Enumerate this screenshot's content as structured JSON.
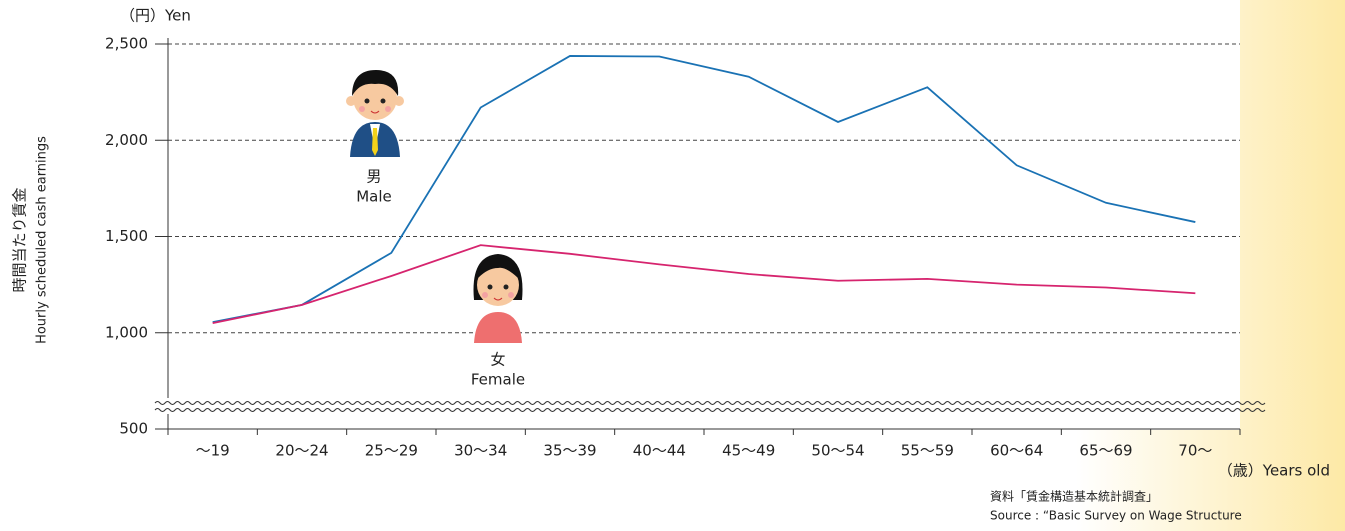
{
  "chart_data": {
    "type": "line",
    "y_unit_label": "（円）Yen",
    "y_axis_label_ja": "時間当たり賃金",
    "y_axis_label_en": "Hourly scheduled cash earnings",
    "x_unit_label": "（歳）Years old",
    "source_ja": "資料「賃金構造基本統計調査」",
    "source_en": "Source : “Basic Survey on Wage Structure",
    "categories": [
      "～19",
      "20～24",
      "25～29",
      "30～34",
      "35～39",
      "40～44",
      "45～49",
      "50～54",
      "55～59",
      "60～64",
      "65～69",
      "70～"
    ],
    "series": [
      {
        "name": "男",
        "name_en": "Male",
        "color": "#1a72b4",
        "values": [
          1055,
          1145,
          1415,
          2170,
          2438,
          2435,
          2330,
          2095,
          2275,
          1870,
          1675,
          1575
        ]
      },
      {
        "name": "女",
        "name_en": "Female",
        "color": "#d6246e",
        "values": [
          1050,
          1145,
          1295,
          1455,
          1410,
          1355,
          1305,
          1270,
          1280,
          1250,
          1235,
          1205
        ]
      }
    ],
    "ylim": [
      500,
      2500
    ],
    "yticks": [
      {
        "value": 2500,
        "label": "2,500"
      },
      {
        "value": 2000,
        "label": "2,000"
      },
      {
        "value": 1500,
        "label": "1,500"
      },
      {
        "value": 1000,
        "label": "1,000"
      },
      500
    ],
    "grid": true
  }
}
